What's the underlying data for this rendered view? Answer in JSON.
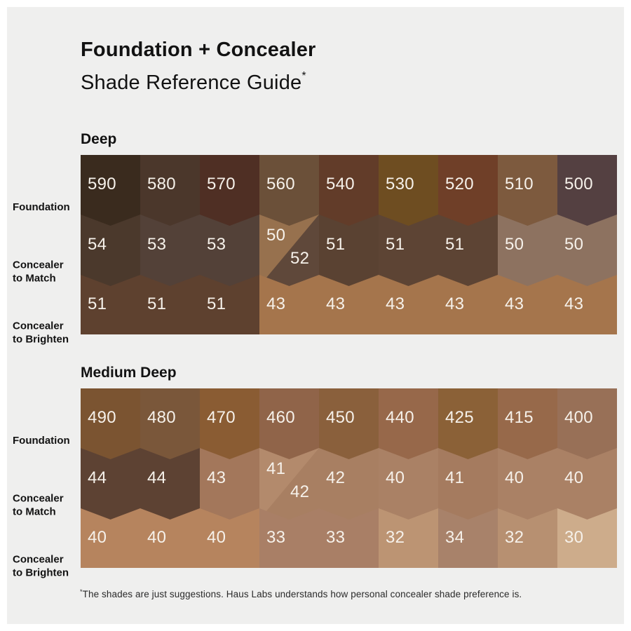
{
  "title": {
    "line1": "Foundation + Concealer",
    "line2": "Shade Reference Guide",
    "asterisk": "*"
  },
  "row_labels": {
    "foundation": "Foundation",
    "match_line1": "Concealer",
    "match_line2": "to Match",
    "brighten_line1": "Concealer",
    "brighten_line2": "to Brighten"
  },
  "footnote": {
    "asterisk": "*",
    "text": "The shades are just suggestions. Haus Labs understands how personal concealer shade preference is."
  },
  "colors": {
    "background": "#efefee",
    "frame": "#ffffff",
    "heading_text": "#121212",
    "swatch_number_text": "#f6f1ea"
  },
  "chart_data": {
    "type": "table",
    "title": "Foundation + Concealer Shade Reference Guide",
    "sections": [
      {
        "name": "Deep",
        "foundation": [
          {
            "label": "590",
            "color": "#3a2b1e"
          },
          {
            "label": "580",
            "color": "#4b372b"
          },
          {
            "label": "570",
            "color": "#4f2f24"
          },
          {
            "label": "560",
            "color": "#6b5039"
          },
          {
            "label": "540",
            "color": "#623c29"
          },
          {
            "label": "530",
            "color": "#6e4d21"
          },
          {
            "label": "520",
            "color": "#6f3f28"
          },
          {
            "label": "510",
            "color": "#7d5a3e"
          },
          {
            "label": "500",
            "color": "#544041"
          }
        ],
        "match": [
          {
            "label": "54",
            "color": "#4b392c"
          },
          {
            "label": "53",
            "color": "#534138"
          },
          {
            "label": "53",
            "color": "#534138"
          },
          {
            "split": true,
            "top": {
              "label": "50",
              "color": "#97714e"
            },
            "bottom": {
              "label": "52",
              "color": "#5f483a"
            }
          },
          {
            "label": "51",
            "color": "#5a4232"
          },
          {
            "label": "51",
            "color": "#5d4434"
          },
          {
            "label": "51",
            "color": "#5d4434"
          },
          {
            "label": "50",
            "color": "#8d7260"
          },
          {
            "label": "50",
            "color": "#8d7260"
          }
        ],
        "brighten": [
          {
            "label": "51",
            "color": "#5e412f"
          },
          {
            "label": "51",
            "color": "#5e412f"
          },
          {
            "label": "51",
            "color": "#5e412f"
          },
          {
            "label": "43",
            "color": "#a5754c"
          },
          {
            "label": "43",
            "color": "#a5754c"
          },
          {
            "label": "43",
            "color": "#a5754c"
          },
          {
            "label": "43",
            "color": "#a5754c"
          },
          {
            "label": "43",
            "color": "#a5754c"
          },
          {
            "label": "43",
            "color": "#a5754c"
          }
        ]
      },
      {
        "name": "Medium Deep",
        "foundation": [
          {
            "label": "490",
            "color": "#7b5431"
          },
          {
            "label": "480",
            "color": "#7a573a"
          },
          {
            "label": "470",
            "color": "#8a5c33"
          },
          {
            "label": "460",
            "color": "#906449"
          },
          {
            "label": "450",
            "color": "#8a603c"
          },
          {
            "label": "440",
            "color": "#97684a"
          },
          {
            "label": "425",
            "color": "#8b6137"
          },
          {
            "label": "415",
            "color": "#97694a"
          },
          {
            "label": "400",
            "color": "#987057"
          }
        ],
        "match": [
          {
            "label": "44",
            "color": "#5d4233"
          },
          {
            "label": "44",
            "color": "#5d4233"
          },
          {
            "label": "43",
            "color": "#a3775b"
          },
          {
            "split": true,
            "top": {
              "label": "41",
              "color": "#b38a6c"
            },
            "bottom": {
              "label": "42",
              "color": "#a87f62"
            }
          },
          {
            "label": "42",
            "color": "#a87f62"
          },
          {
            "label": "40",
            "color": "#aa8165"
          },
          {
            "label": "41",
            "color": "#a57b5f"
          },
          {
            "label": "40",
            "color": "#aa8165"
          },
          {
            "label": "40",
            "color": "#aa8165"
          }
        ],
        "brighten": [
          {
            "label": "40",
            "color": "#b6845e"
          },
          {
            "label": "40",
            "color": "#b6845e"
          },
          {
            "label": "40",
            "color": "#b6845e"
          },
          {
            "label": "33",
            "color": "#a97f66"
          },
          {
            "label": "33",
            "color": "#a97f66"
          },
          {
            "label": "32",
            "color": "#bc9473"
          },
          {
            "label": "34",
            "color": "#a8826a"
          },
          {
            "label": "32",
            "color": "#b79071"
          },
          {
            "label": "30",
            "color": "#cdac8b"
          }
        ]
      }
    ]
  }
}
